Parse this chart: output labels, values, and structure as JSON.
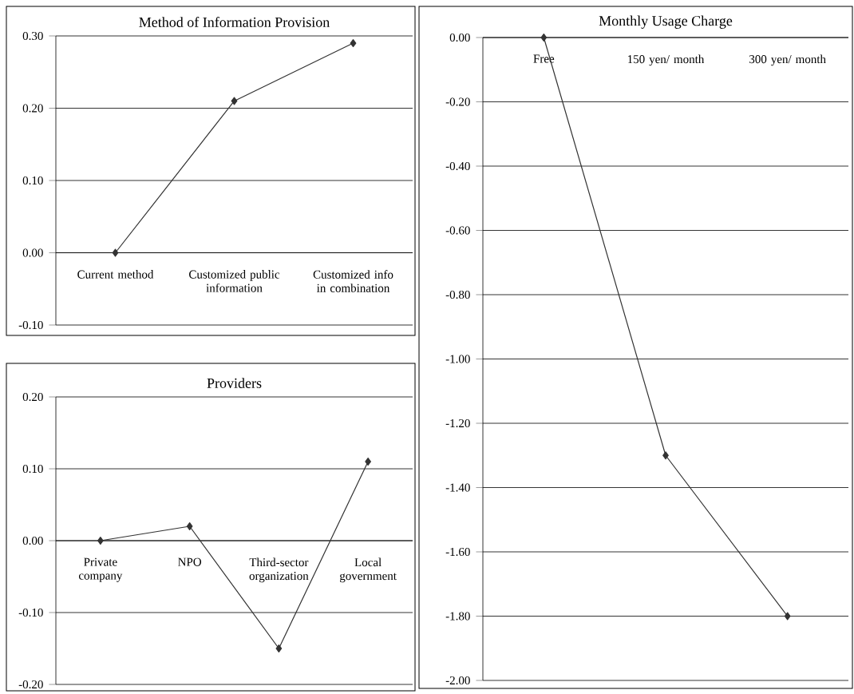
{
  "chart_data": [
    {
      "type": "line",
      "title": "Method of Information Provision",
      "categories": [
        "Current method",
        "Customized public information",
        "Customized info in combination"
      ],
      "values": [
        0,
        0.21,
        0.29
      ],
      "color": "#333333",
      "marker": "diamond",
      "grid": "y",
      "ylim": [
        -0.1,
        0.3
      ],
      "yticks": [
        {
          "value": -0.1,
          "label": "-0.10"
        },
        {
          "value": 0,
          "label": "0.00"
        },
        {
          "value": 0.1,
          "label": "0.10"
        },
        {
          "value": 0.2,
          "label": "0.20"
        },
        {
          "value": 0.3,
          "label": "0.30"
        }
      ]
    },
    {
      "type": "line",
      "title": "Providers",
      "categories": [
        "Private company",
        "NPO",
        "Third-sector organization",
        "Local government"
      ],
      "values": [
        0,
        0.02,
        -0.15,
        0.11
      ],
      "color": "#333333",
      "marker": "diamond",
      "grid": "y",
      "ylim": [
        -0.2,
        0.2
      ],
      "yticks": [
        {
          "value": -0.2,
          "label": "-0.20"
        },
        {
          "value": -0.1,
          "label": "-0.10"
        },
        {
          "value": 0,
          "label": "0.00"
        },
        {
          "value": 0.1,
          "label": "0.10"
        },
        {
          "value": 0.2,
          "label": "0.20"
        }
      ]
    },
    {
      "type": "line",
      "title": "Monthly Usage Charge",
      "categories": [
        "Free",
        "150 yen/ month",
        "300 yen/ month"
      ],
      "values": [
        0,
        -1.3,
        -1.8
      ],
      "color": "#333333",
      "marker": "diamond",
      "grid": "y",
      "ylim": [
        -2.0,
        0
      ],
      "yticks": [
        {
          "value": -2.0,
          "label": "-2.00"
        },
        {
          "value": -1.8,
          "label": "-1.80"
        },
        {
          "value": -1.6,
          "label": "-1.60"
        },
        {
          "value": -1.4,
          "label": "-1.40"
        },
        {
          "value": -1.2,
          "label": "-1.20"
        },
        {
          "value": -1.0,
          "label": "-1.00"
        },
        {
          "value": -0.8,
          "label": "-0.80"
        },
        {
          "value": -0.6,
          "label": "-0.60"
        },
        {
          "value": -0.4,
          "label": "-0.40"
        },
        {
          "value": -0.2,
          "label": "-0.20"
        },
        {
          "value": 0,
          "label": "0.00"
        }
      ]
    }
  ]
}
